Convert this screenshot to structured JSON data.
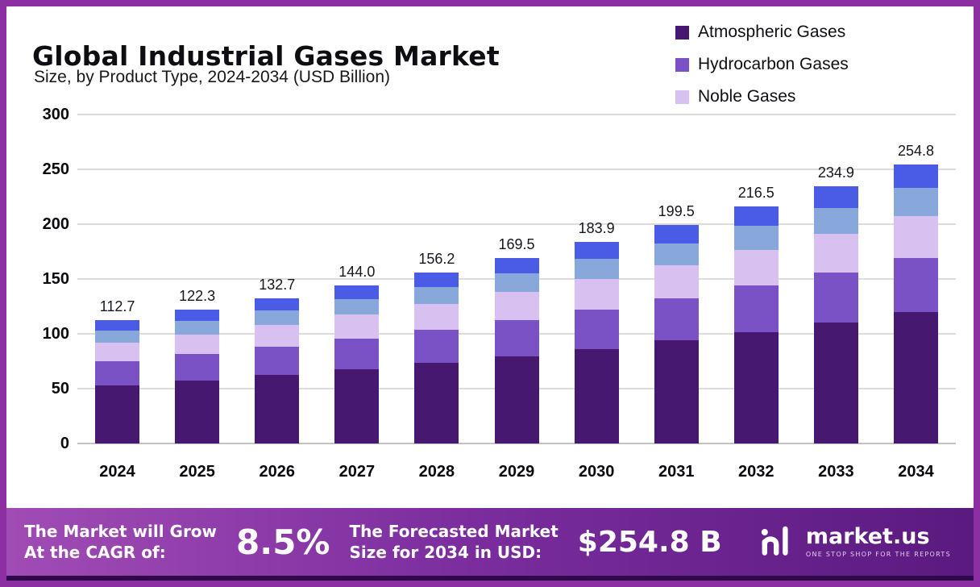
{
  "header": {
    "title": "Global Industrial Gases Market",
    "subtitle": "Size, by Product Type, 2024-2034 (USD Billion)"
  },
  "legend": {
    "items": [
      {
        "label": "Atmospheric Gases",
        "color": "#46186f"
      },
      {
        "label": "Hydrocarbon Gases",
        "color": "#7a52c6"
      },
      {
        "label": "Noble Gases",
        "color": "#d8c0f0"
      }
    ]
  },
  "chart_data": {
    "type": "bar",
    "stacked": true,
    "title": "Global Industrial Gases Market",
    "subtitle": "Size, by Product Type, 2024-2034 (USD Billion)",
    "unit": "USD Billion",
    "categories": [
      "2024",
      "2025",
      "2026",
      "2027",
      "2028",
      "2029",
      "2030",
      "2031",
      "2032",
      "2033",
      "2034"
    ],
    "totals": [
      "112.7",
      "122.3",
      "132.7",
      "144.0",
      "156.2",
      "169.5",
      "183.9",
      "199.5",
      "216.5",
      "234.9",
      "254.8"
    ],
    "series": [
      {
        "name": "Atmospheric Gases",
        "color": "#46186f",
        "values": [
          53.0,
          57.5,
          62.4,
          67.7,
          73.4,
          79.7,
          86.4,
          93.8,
          101.8,
          110.4,
          119.8
        ]
      },
      {
        "name": "Hydrocarbon Gases",
        "color": "#7a52c6",
        "values": [
          22.0,
          23.8,
          25.9,
          28.1,
          30.5,
          33.1,
          35.9,
          38.9,
          42.2,
          45.8,
          49.7
        ]
      },
      {
        "name": "Noble Gases",
        "color": "#d8c0f0",
        "values": [
          16.9,
          18.3,
          19.9,
          21.6,
          23.4,
          25.4,
          27.6,
          29.9,
          32.5,
          35.2,
          38.2
        ]
      },
      {
        "name": "unlabeled-steel-blue",
        "color": "#88a8dc",
        "values": [
          11.3,
          12.2,
          13.3,
          14.4,
          15.6,
          17.0,
          18.4,
          20.0,
          21.7,
          23.5,
          25.5
        ]
      },
      {
        "name": "unlabeled-bright-blue",
        "color": "#4a5be5",
        "values": [
          9.5,
          10.5,
          11.2,
          12.2,
          13.3,
          14.3,
          15.6,
          16.9,
          18.3,
          20.0,
          21.6
        ]
      }
    ],
    "ylim": [
      0,
      300
    ],
    "yticks": [
      0,
      50,
      100,
      150,
      200,
      250,
      300
    ],
    "grid": "horizontal",
    "legend_position": "top-right"
  },
  "footer": {
    "cagr_label": "The Market will Grow\nAt the CAGR of:",
    "cagr_value": "8.5%",
    "forecast_label": "The Forecasted Market\nSize for 2034 in USD:",
    "forecast_value": "$254.8 B",
    "brand": "market.us",
    "tagline": "ONE STOP SHOP FOR THE REPORTS"
  }
}
